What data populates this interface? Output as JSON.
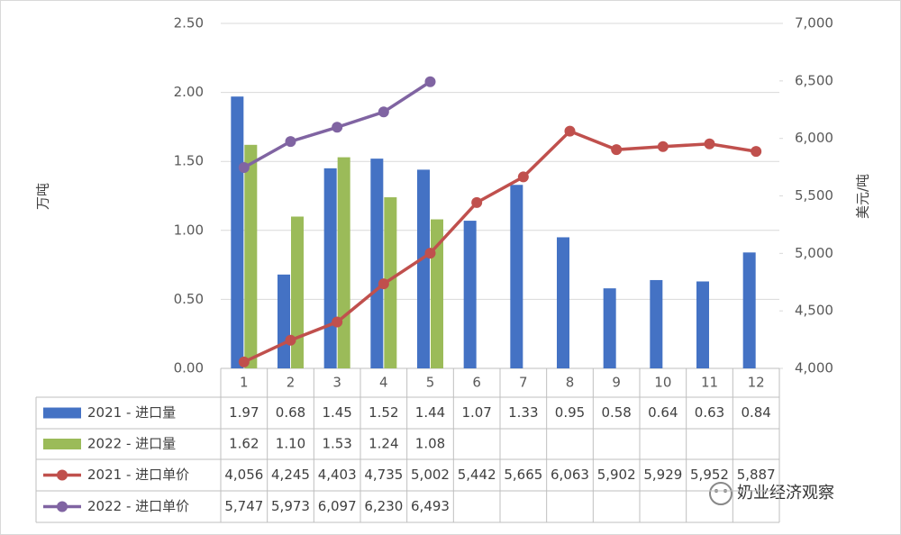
{
  "chart_data": {
    "type": "bar",
    "categories": [
      "1",
      "2",
      "3",
      "4",
      "5",
      "6",
      "7",
      "8",
      "9",
      "10",
      "11",
      "12"
    ],
    "ylabel": "万吨",
    "y2label": "美元/吨",
    "ylim": [
      0,
      2.5
    ],
    "yticks": [
      {
        "value": 0,
        "label": "0.00"
      },
      {
        "value": 0.5,
        "label": "0.50"
      },
      {
        "value": 1,
        "label": "1.00"
      },
      {
        "value": 1.5,
        "label": "1.50"
      },
      {
        "value": 2,
        "label": "2.00"
      },
      {
        "value": 2.5,
        "label": "2.50"
      }
    ],
    "y2lim": [
      4000,
      7000
    ],
    "y2ticks": [
      {
        "value": 4000,
        "label": "4,000"
      },
      {
        "value": 4500,
        "label": "4,500"
      },
      {
        "value": 5000,
        "label": "5,000"
      },
      {
        "value": 5500,
        "label": "5,500"
      },
      {
        "value": 6000,
        "label": "6,000"
      },
      {
        "value": 6500,
        "label": "6,500"
      },
      {
        "value": 7000,
        "label": "7,000"
      }
    ],
    "grid": true,
    "series": [
      {
        "name": "2021 - 进口量",
        "type": "bar",
        "color": "#4472c4",
        "values": [
          1.97,
          0.68,
          1.45,
          1.52,
          1.44,
          1.07,
          1.33,
          0.95,
          0.58,
          0.64,
          0.63,
          0.84
        ],
        "value_labels": [
          "1.97",
          "0.68",
          "1.45",
          "1.52",
          "1.44",
          "1.07",
          "1.33",
          "0.95",
          "0.58",
          "0.64",
          "0.63",
          "0.84"
        ]
      },
      {
        "name": "2022 - 进口量",
        "type": "bar",
        "color": "#9bbb59",
        "values": [
          1.62,
          1.1,
          1.53,
          1.24,
          1.08,
          null,
          null,
          null,
          null,
          null,
          null,
          null
        ],
        "value_labels": [
          "1.62",
          "1.10",
          "1.53",
          "1.24",
          "1.08",
          null,
          null,
          null,
          null,
          null,
          null,
          null
        ]
      },
      {
        "name": "2021 - 进口单价",
        "type": "line",
        "axis": "y2",
        "color": "#c0504d",
        "values": [
          4056,
          4245,
          4403,
          4735,
          5002,
          5442,
          5665,
          6063,
          5902,
          5929,
          5952,
          5887
        ],
        "value_labels": [
          "4,056",
          "4,245",
          "4,403",
          "4,735",
          "5,002",
          "5,442",
          "5,665",
          "6,063",
          "5,902",
          "5,929",
          "5,952",
          "5,887"
        ]
      },
      {
        "name": "2022 - 进口单价",
        "type": "line",
        "axis": "y2",
        "color": "#8064a2",
        "values": [
          5747,
          5973,
          6097,
          6230,
          6493,
          null,
          null,
          null,
          null,
          null,
          null,
          null
        ],
        "value_labels": [
          "5,747",
          "5,973",
          "6,097",
          "6,230",
          "6,493",
          null,
          null,
          null,
          null,
          null,
          null,
          null
        ]
      }
    ]
  },
  "watermark": "奶业经济观察"
}
